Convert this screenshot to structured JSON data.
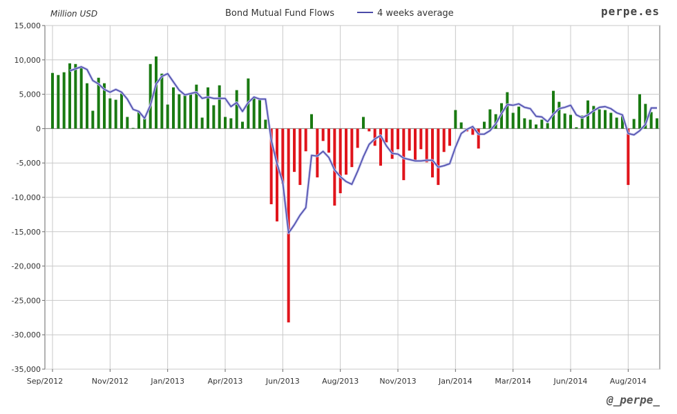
{
  "chart_data": {
    "type": "bar",
    "title": "Bond Mutual Fund Flows",
    "ylabel": "Million USD",
    "brand": "perpe.es",
    "handle": "@_perpe_",
    "ylim": [
      -35000,
      15000
    ],
    "yticks": [
      15000,
      10000,
      5000,
      0,
      -5000,
      -10000,
      -15000,
      -20000,
      -25000,
      -30000,
      -35000
    ],
    "ytick_labels": [
      "15,000",
      "10,000",
      "5,000",
      "0",
      "-5,000",
      "-10,000",
      "-15,000",
      "-20,000",
      "-25,000",
      "-30,000",
      "-35,000"
    ],
    "xticks": [
      "Sep/2012",
      "Nov/2012",
      "Jan/2013",
      "Apr/2013",
      "Jun/2013",
      "Aug/2013",
      "Nov/2013",
      "Jan/2014",
      "Mar/2014",
      "Jun/2014",
      "Aug/2014"
    ],
    "xtick_week_index": [
      0,
      10,
      20,
      30,
      40,
      50,
      60,
      70,
      80,
      90,
      100
    ],
    "grid": true,
    "legend_position": "top-center",
    "colors": {
      "positive": "#1a7a12",
      "negative": "#e0141b",
      "average": "#4a4aa8"
    },
    "series": [
      {
        "name": "Bond Mutual Fund Flows",
        "type": "bar",
        "values": [
          8100,
          7800,
          8200,
          9500,
          9400,
          9000,
          6600,
          2600,
          7400,
          6600,
          4400,
          4200,
          5100,
          1700,
          100,
          2500,
          1500,
          9400,
          10500,
          8000,
          3500,
          6000,
          5000,
          4900,
          5000,
          6400,
          1600,
          6000,
          3400,
          6300,
          1700,
          1500,
          5600,
          1000,
          7300,
          4500,
          4200,
          1300,
          -11000,
          -13500,
          -8000,
          -28200,
          -6300,
          -8200,
          -3300,
          2100,
          -7100,
          -1800,
          -3500,
          -11200,
          -9400,
          -6700,
          -5600,
          -2800,
          1700,
          -400,
          -2500,
          -5400,
          -2000,
          -4400,
          -3000,
          -7500,
          -3200,
          -4800,
          -3000,
          -4900,
          -7100,
          -8200,
          -3400,
          -2500,
          2700,
          900,
          -400,
          -900,
          -2900,
          1000,
          2800,
          2100,
          3700,
          5300,
          2300,
          3200,
          1500,
          1300,
          600,
          1300,
          800,
          5500,
          3900,
          2200,
          2000,
          200,
          1900,
          4100,
          3300,
          2800,
          2700,
          2300,
          1600,
          1800,
          -8200,
          1400,
          5000,
          3600,
          2400,
          1500
        ]
      },
      {
        "name": "4 weeks average",
        "type": "line",
        "values": [
          null,
          null,
          null,
          8400,
          8700,
          9000,
          8600,
          7000,
          6500,
          5700,
          5300,
          5700,
          5300,
          4300,
          2800,
          2500,
          1500,
          3400,
          6500,
          7600,
          8000,
          6800,
          5600,
          4900,
          5100,
          5300,
          4400,
          4600,
          4400,
          4400,
          4400,
          3200,
          3800,
          2500,
          3800,
          4600,
          4300,
          4300,
          -1700,
          -5100,
          -7800,
          -15200,
          -14000,
          -12600,
          -11500,
          -3900,
          -4000,
          -3300,
          -4200,
          -6000,
          -7000,
          -7700,
          -8100,
          -6200,
          -4100,
          -2300,
          -1500,
          -1000,
          -2500,
          -3600,
          -3700,
          -4300,
          -4500,
          -4700,
          -4700,
          -4600,
          -4600,
          -5600,
          -5400,
          -5100,
          -2700,
          -700,
          -100,
          300,
          -800,
          -800,
          -300,
          700,
          2200,
          3500,
          3400,
          3600,
          3100,
          2900,
          1800,
          1700,
          1000,
          2100,
          2900,
          3100,
          3400,
          2000,
          1600,
          2000,
          2600,
          3100,
          3200,
          2900,
          2300,
          2000,
          -700,
          -900,
          -300,
          600,
          3000,
          3000
        ]
      }
    ]
  }
}
